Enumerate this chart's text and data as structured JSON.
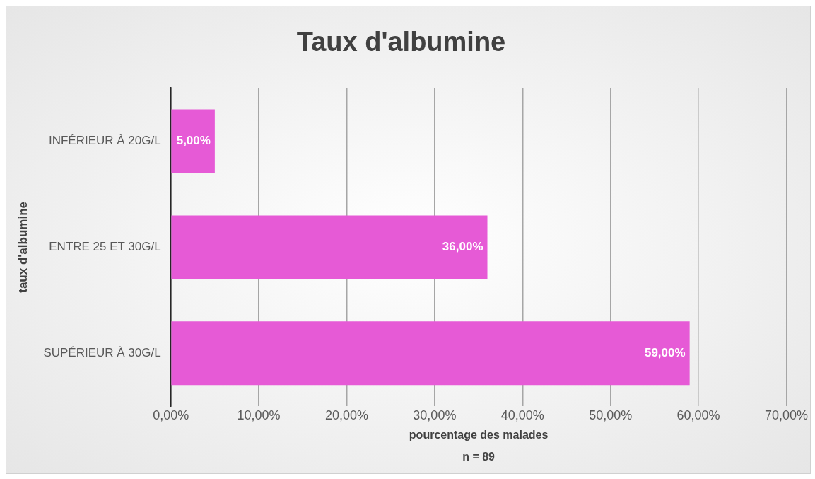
{
  "chart_data": {
    "type": "bar",
    "orientation": "horizontal",
    "title": "Taux d'albumine",
    "xlabel": "pourcentage des malades",
    "ylabel": "taux d'albumine",
    "annotations": [
      "n = 89"
    ],
    "categories": [
      "INFÉRIEUR À 20G/L",
      "ENTRE 25 ET 30G/L",
      "SUPÉRIEUR À 30G/L"
    ],
    "values": [
      5,
      36,
      59
    ],
    "value_labels": [
      "5,00%",
      "36,00%",
      "59,00%"
    ],
    "color": "#e65ad6",
    "xlim": [
      0,
      70
    ],
    "xticks": [
      {
        "value": 0,
        "label": "0,00%"
      },
      {
        "value": 10,
        "label": "10,00%"
      },
      {
        "value": 20,
        "label": "20,00%"
      },
      {
        "value": 30,
        "label": "30,00%"
      },
      {
        "value": 40,
        "label": "40,00%"
      },
      {
        "value": 50,
        "label": "50,00%"
      },
      {
        "value": 60,
        "label": "60,00%"
      },
      {
        "value": 70,
        "label": "70,00%"
      }
    ],
    "grid": "x",
    "legend": false
  }
}
